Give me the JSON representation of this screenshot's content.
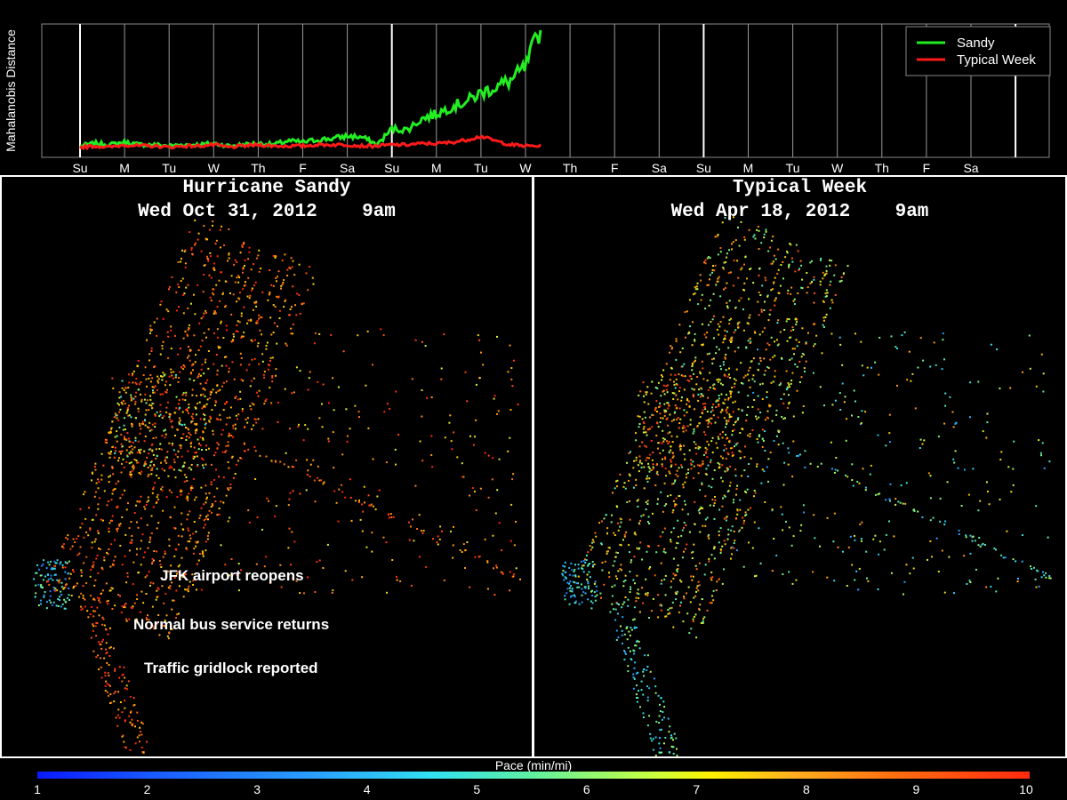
{
  "chart_data": [
    {
      "type": "line",
      "ylabel": "Mahalanobis Distance",
      "xlabel": "",
      "x_tick_labels": [
        "Su",
        "M",
        "Tu",
        "W",
        "Th",
        "F",
        "Sa",
        "Su",
        "M",
        "Tu",
        "W",
        "Th",
        "F",
        "Sa",
        "Su",
        "M",
        "Tu",
        "W",
        "Th",
        "F",
        "Sa"
      ],
      "grid": true,
      "legend_position": "top-right",
      "ylim": [
        0,
        1
      ],
      "series": [
        {
          "name": "Sandy",
          "color": "#22ee22",
          "values": [
            0.04,
            0.06,
            0.05,
            0.07,
            0.05,
            0.05,
            0.04,
            0.05,
            0.05,
            0.06,
            0.04,
            0.05,
            0.06,
            0.05,
            0.08,
            0.07,
            0.09,
            0.1,
            0.12,
            0.11,
            0.05,
            0.18,
            0.17,
            0.26,
            0.3,
            0.36,
            0.4,
            0.47,
            0.52,
            0.57,
            0.68,
            1.0
          ]
        },
        {
          "name": "Typical Week",
          "color": "#ff1a1a",
          "values": [
            0.03,
            0.04,
            0.03,
            0.05,
            0.04,
            0.04,
            0.03,
            0.04,
            0.04,
            0.05,
            0.03,
            0.04,
            0.05,
            0.04,
            0.04,
            0.04,
            0.05,
            0.05,
            0.05,
            0.04,
            0.04,
            0.05,
            0.05,
            0.06,
            0.06,
            0.07,
            0.09,
            0.12,
            0.08,
            0.05,
            0.04,
            0.04
          ]
        }
      ]
    },
    {
      "type": "scatter",
      "title": "Hurricane Sandy",
      "subtitle": "Wed Oct 31, 2012    9am",
      "annotations": [
        "JFK airport reopens",
        "Normal bus service returns",
        "Traffic gridlock reported"
      ]
    },
    {
      "type": "scatter",
      "title": "Typical Week",
      "subtitle": "Wed Apr 18, 2012    9am"
    },
    {
      "type": "colorbar",
      "title": "Pace (min/mi)",
      "ticks": [
        "1",
        "2",
        "3",
        "4",
        "5",
        "6",
        "7",
        "8",
        "9",
        "10"
      ],
      "range": [
        1,
        10
      ]
    }
  ]
}
